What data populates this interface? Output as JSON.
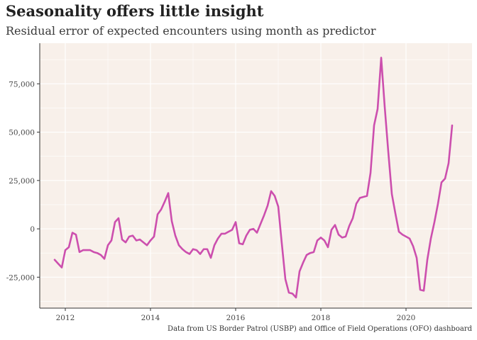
{
  "chart_data": {
    "type": "line",
    "title": "Seasonality offers little insight",
    "subtitle": "Residual error of expected encounters using month as predictor",
    "caption": "Data from US Border Patrol (USBP) and Office of Field Operations (OFO) dashboard",
    "xlabel": "",
    "ylabel": "",
    "xlim": [
      2011.4,
      2021.55
    ],
    "ylim": [
      -41000,
      96000
    ],
    "x_ticks": [
      2012,
      2014,
      2016,
      2018,
      2020
    ],
    "x_tick_labels": [
      "2012",
      "2014",
      "2016",
      "2018",
      "2020"
    ],
    "y_ticks": [
      -25000,
      0,
      25000,
      50000,
      75000
    ],
    "y_tick_labels": [
      "-25,000",
      "0",
      "25,000",
      "50,000",
      "75,000"
    ],
    "grid": true,
    "legend": "none",
    "colors": {
      "line": "#cc4fae",
      "panel": "#f8f0ea",
      "grid": "#ffffff",
      "axis": "#333333"
    },
    "series": [
      {
        "name": "residual",
        "x": [
          2011.75,
          2011.833,
          2011.917,
          2012.0,
          2012.083,
          2012.167,
          2012.25,
          2012.333,
          2012.417,
          2012.5,
          2012.583,
          2012.667,
          2012.75,
          2012.833,
          2012.917,
          2013.0,
          2013.083,
          2013.167,
          2013.25,
          2013.333,
          2013.417,
          2013.5,
          2013.583,
          2013.667,
          2013.75,
          2013.833,
          2013.917,
          2014.0,
          2014.083,
          2014.167,
          2014.25,
          2014.333,
          2014.417,
          2014.5,
          2014.583,
          2014.667,
          2014.75,
          2014.833,
          2014.917,
          2015.0,
          2015.083,
          2015.167,
          2015.25,
          2015.333,
          2015.417,
          2015.5,
          2015.583,
          2015.667,
          2015.75,
          2015.833,
          2015.917,
          2016.0,
          2016.083,
          2016.167,
          2016.25,
          2016.333,
          2016.417,
          2016.5,
          2016.583,
          2016.667,
          2016.75,
          2016.833,
          2016.917,
          2017.0,
          2017.083,
          2017.167,
          2017.25,
          2017.333,
          2017.417,
          2017.5,
          2017.583,
          2017.667,
          2017.75,
          2017.833,
          2017.917,
          2018.0,
          2018.083,
          2018.167,
          2018.25,
          2018.333,
          2018.417,
          2018.5,
          2018.583,
          2018.667,
          2018.75,
          2018.833,
          2018.917,
          2019.0,
          2019.083,
          2019.167,
          2019.25,
          2019.333,
          2019.417,
          2019.5,
          2019.583,
          2019.667,
          2019.75,
          2019.833,
          2019.917,
          2020.0,
          2020.083,
          2020.167,
          2020.25,
          2020.333,
          2020.417,
          2020.5,
          2020.583,
          2020.667,
          2020.75,
          2020.833,
          2020.917,
          2021.0,
          2021.083
        ],
        "values": [
          -16000,
          -18000,
          -20000,
          -11000,
          -9500,
          -2000,
          -3000,
          -12000,
          -11000,
          -11000,
          -11000,
          -12000,
          -12500,
          -13500,
          -15500,
          -8500,
          -6000,
          3500,
          5500,
          -5500,
          -7000,
          -4000,
          -3500,
          -6000,
          -5500,
          -7000,
          -8500,
          -6000,
          -4000,
          7500,
          10000,
          14000,
          18500,
          4000,
          -3500,
          -8500,
          -10500,
          -12000,
          -13000,
          -10500,
          -11000,
          -13000,
          -10500,
          -10500,
          -15000,
          -8500,
          -5000,
          -2500,
          -2500,
          -1500,
          -500,
          3500,
          -7500,
          -8000,
          -3500,
          -500,
          0,
          -2000,
          2500,
          7000,
          12000,
          19500,
          17000,
          11500,
          -7500,
          -26000,
          -33000,
          -33500,
          -35500,
          -22000,
          -17500,
          -13500,
          -12500,
          -12000,
          -6000,
          -4500,
          -6000,
          -9500,
          -500,
          2000,
          -3000,
          -4500,
          -4000,
          1500,
          5500,
          13000,
          16000,
          16500,
          17000,
          29000,
          53500,
          62000,
          88500,
          63000,
          40000,
          18000,
          8000,
          -1500,
          -3000,
          -4000,
          -5000,
          -9000,
          -15000,
          -31500,
          -32000,
          -16000,
          -5000,
          3500,
          13000,
          24000,
          26000,
          34000,
          53500
        ]
      }
    ]
  }
}
